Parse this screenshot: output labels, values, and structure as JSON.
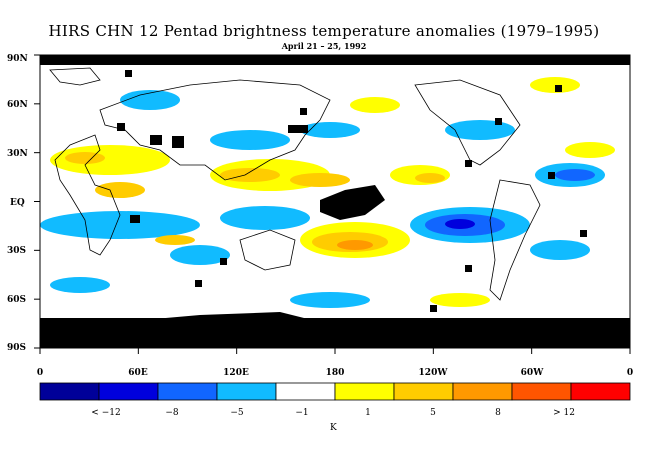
{
  "title": "HIRS CHN 12 Pentad brightness temperature anomalies (1979–1995)",
  "subtitle": "April 21 – 25, 1992",
  "lat_labels": [
    "90N",
    "60N",
    "30N",
    "EQ",
    "30S",
    "60S",
    "90S"
  ],
  "lon_labels": [
    "0",
    "60E",
    "120E",
    "180",
    "120W",
    "60W",
    "0"
  ],
  "colorbar": {
    "colors": [
      "#000099",
      "#0000dd",
      "#1166ff",
      "#11bbff",
      "#ffffff",
      "#ffff00",
      "#ffcc00",
      "#ff9900",
      "#ff5500",
      "#ff0000"
    ],
    "labels": [
      "< −12",
      "−8",
      "−5",
      "−1",
      "1",
      "5",
      "8",
      "> 12"
    ],
    "unit": "K"
  }
}
